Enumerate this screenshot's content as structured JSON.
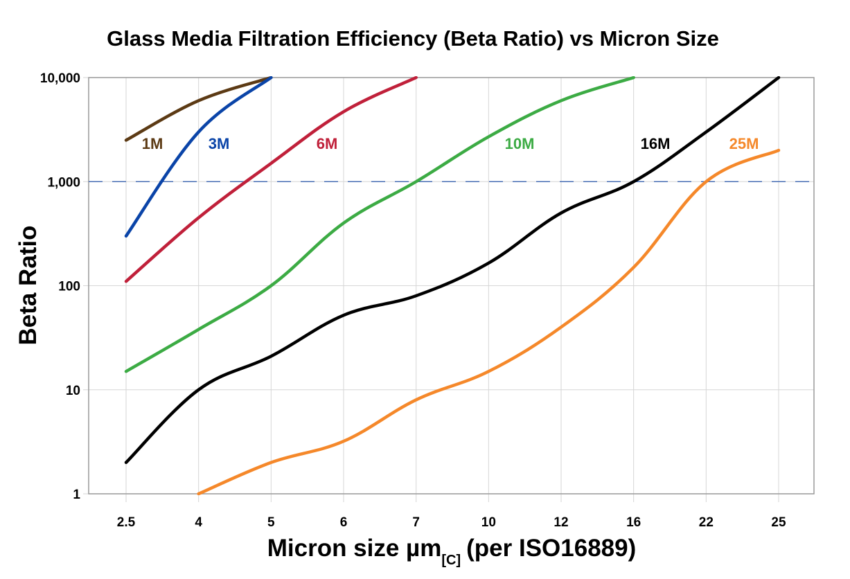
{
  "chart_data": {
    "type": "line",
    "title": "Glass Media Filtration Efficiency (Beta Ratio) vs Micron Size",
    "xlabel": "Micron size µm",
    "xlabel_subscript": "[C]",
    "xlabel_suffix": "(per ISO16889)",
    "ylabel": "Beta Ratio",
    "y_scale": "log",
    "ylim": [
      1,
      10000
    ],
    "y_ticks": [
      "1",
      "10",
      "100",
      "1,000",
      "10,000"
    ],
    "categories": [
      "2.5",
      "4",
      "5",
      "6",
      "7",
      "10",
      "12",
      "16",
      "22",
      "25"
    ],
    "grid": true,
    "reference_line": {
      "value": 1000,
      "style": "dashed",
      "color": "#4a6fb5"
    },
    "series": [
      {
        "name": "1M",
        "color": "#5c3a14",
        "values": [
          2500,
          6000,
          10000,
          null,
          null,
          null,
          null,
          null,
          null,
          null
        ]
      },
      {
        "name": "3M",
        "color": "#0a44a8",
        "values": [
          300,
          3000,
          10000,
          null,
          null,
          null,
          null,
          null,
          null,
          null
        ]
      },
      {
        "name": "6M",
        "color": "#c0203a",
        "values": [
          110,
          450,
          1500,
          4700,
          10000,
          null,
          null,
          null,
          null,
          null
        ]
      },
      {
        "name": "10M",
        "color": "#3cab44",
        "values": [
          15,
          38,
          100,
          400,
          1000,
          2700,
          6000,
          10000,
          null,
          null
        ]
      },
      {
        "name": "16M",
        "color": "#000000",
        "values": [
          2,
          10,
          21,
          52,
          80,
          165,
          500,
          1000,
          3000,
          10000
        ]
      },
      {
        "name": "25M",
        "color": "#f5882a",
        "values": [
          null,
          1,
          2,
          3.2,
          8,
          15,
          40,
          150,
          1000,
          2000
        ]
      }
    ]
  }
}
